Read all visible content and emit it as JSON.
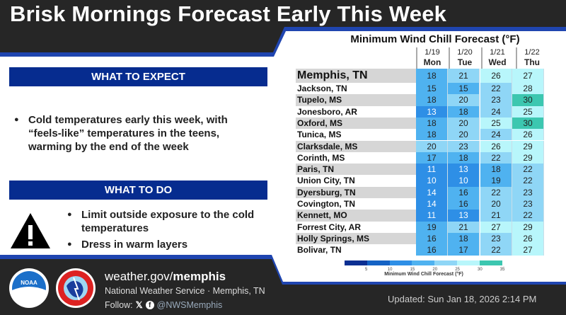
{
  "title": "Brisk Mornings Forecast Early This Week",
  "expect": {
    "heading": "WHAT TO EXPECT",
    "bullets": [
      "Cold temperatures early this week, with “feels-like” temperatures in the teens, warming by the end of the week"
    ]
  },
  "todo": {
    "heading": "WHAT TO DO",
    "bullets": [
      "Limit outside exposure to the cold temperatures",
      "Dress in warm layers"
    ]
  },
  "table": {
    "title": "Minimum Wind Chill Forecast (°F)",
    "columns": [
      {
        "date": "1/19",
        "day": "Mon"
      },
      {
        "date": "1/20",
        "day": "Tue"
      },
      {
        "date": "1/21",
        "day": "Wed"
      },
      {
        "date": "1/22",
        "day": "Thu"
      }
    ],
    "rows": [
      {
        "city": "Memphis, TN",
        "values": [
          18,
          21,
          26,
          27
        ]
      },
      {
        "city": "Jackson, TN",
        "values": [
          15,
          15,
          22,
          28
        ]
      },
      {
        "city": "Tupelo, MS",
        "values": [
          18,
          20,
          23,
          30
        ]
      },
      {
        "city": "Jonesboro, AR",
        "values": [
          13,
          18,
          24,
          25
        ]
      },
      {
        "city": "Oxford, MS",
        "values": [
          18,
          20,
          25,
          30
        ]
      },
      {
        "city": "Tunica, MS",
        "values": [
          18,
          20,
          24,
          26
        ]
      },
      {
        "city": "Clarksdale, MS",
        "values": [
          20,
          23,
          26,
          29
        ]
      },
      {
        "city": "Corinth, MS",
        "values": [
          17,
          18,
          22,
          29
        ]
      },
      {
        "city": "Paris, TN",
        "values": [
          11,
          13,
          18,
          22
        ]
      },
      {
        "city": "Union City, TN",
        "values": [
          10,
          10,
          19,
          22
        ]
      },
      {
        "city": "Dyersburg, TN",
        "values": [
          14,
          16,
          22,
          23
        ]
      },
      {
        "city": "Covington, TN",
        "values": [
          14,
          16,
          20,
          23
        ]
      },
      {
        "city": "Kennett, MO",
        "values": [
          11,
          13,
          21,
          22
        ]
      },
      {
        "city": "Forrest City, AR",
        "values": [
          19,
          21,
          27,
          29
        ]
      },
      {
        "city": "Holly Springs, MS",
        "values": [
          16,
          18,
          23,
          26
        ]
      },
      {
        "city": "Bolivar, TN",
        "values": [
          16,
          17,
          22,
          27
        ]
      }
    ],
    "colorbar": {
      "label": "Minimum Wind Chill Forecast (°F)",
      "ticks": [
        "5",
        "10",
        "15",
        "20",
        "25",
        "30",
        "35"
      ],
      "colors": [
        "#0b2f92",
        "#1462c4",
        "#2e8fe6",
        "#4fb2f0",
        "#8fd6f6",
        "#b8f6fb",
        "#3cc7b0"
      ]
    }
  },
  "footer": {
    "site_prefix": "weather.gov/",
    "site_bold": "memphis",
    "office": "National Weather Service · Memphis, TN",
    "follow": "Follow:",
    "handle": "@NWSMemphis",
    "updated": "Updated: Sun Jan 18, 2026 2:14 PM",
    "noaa": "NOAA"
  }
}
